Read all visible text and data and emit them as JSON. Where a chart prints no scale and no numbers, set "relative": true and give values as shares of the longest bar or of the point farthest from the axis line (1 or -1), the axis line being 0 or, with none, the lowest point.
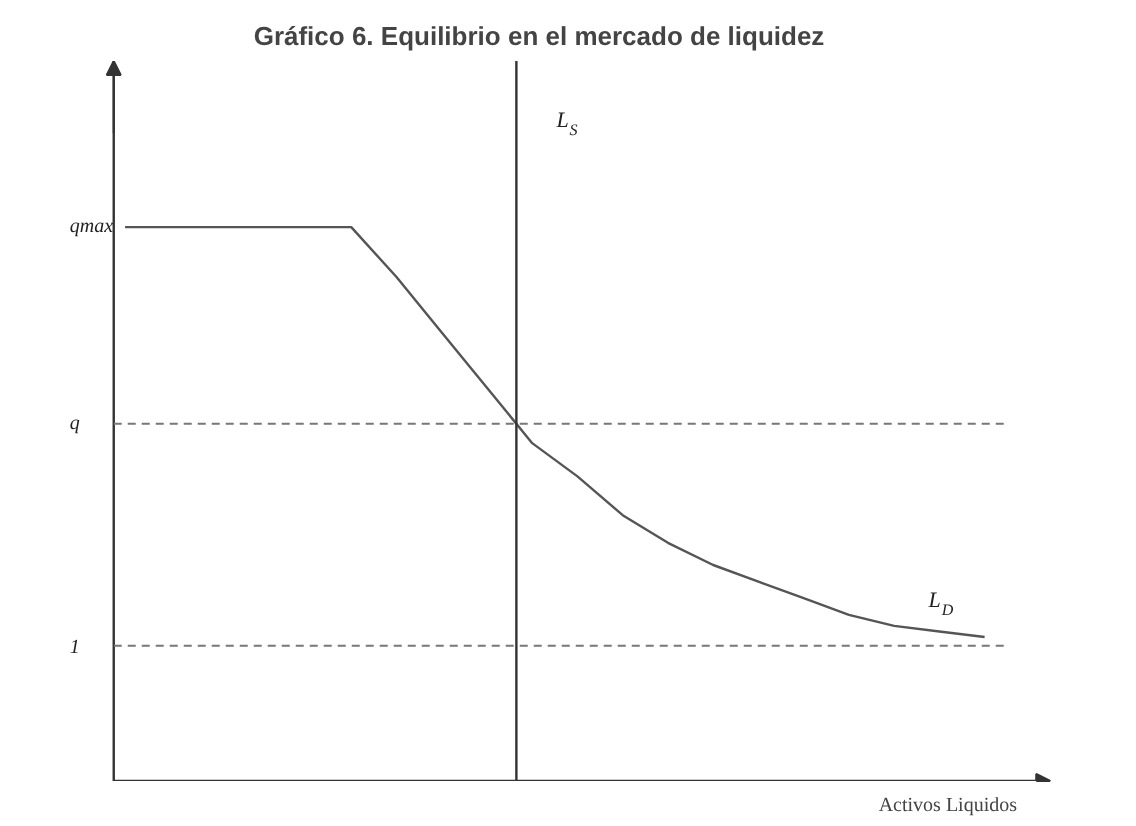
{
  "chart_data": {
    "type": "line",
    "title": "Gráfico 6. Equilibrio en el mercado de liquidez",
    "xlabel": "Activos Liquidos",
    "relative": true,
    "categories": [
      null,
      null,
      null,
      null,
      null,
      null,
      null,
      null,
      null,
      null,
      null,
      null,
      null,
      null,
      null,
      null,
      null,
      null,
      null,
      null
    ],
    "series": [
      {
        "name": "L$_{D}$",
        "color": "#555555",
        "values": [
          1,
          1,
          1,
          1,
          1,
          1,
          0.91,
          0.81,
          0.71,
          0.61,
          0.55,
          0.48,
          0.43,
          0.39,
          0.36,
          0.33,
          0.3,
          0.28,
          0.27,
          0.26
        ]
      }
    ],
    "ref_lines": [
      {
        "axis": "y",
        "value": 0.645,
        "label": "q",
        "line_style": "dashed",
        "color": "#777777"
      },
      {
        "axis": "y",
        "value": 0.244,
        "line_style": "dashed",
        "color": "#777777"
      }
    ],
    "annotations": [
      "qmax",
      "1",
      "L$_{S}$"
    ]
  }
}
